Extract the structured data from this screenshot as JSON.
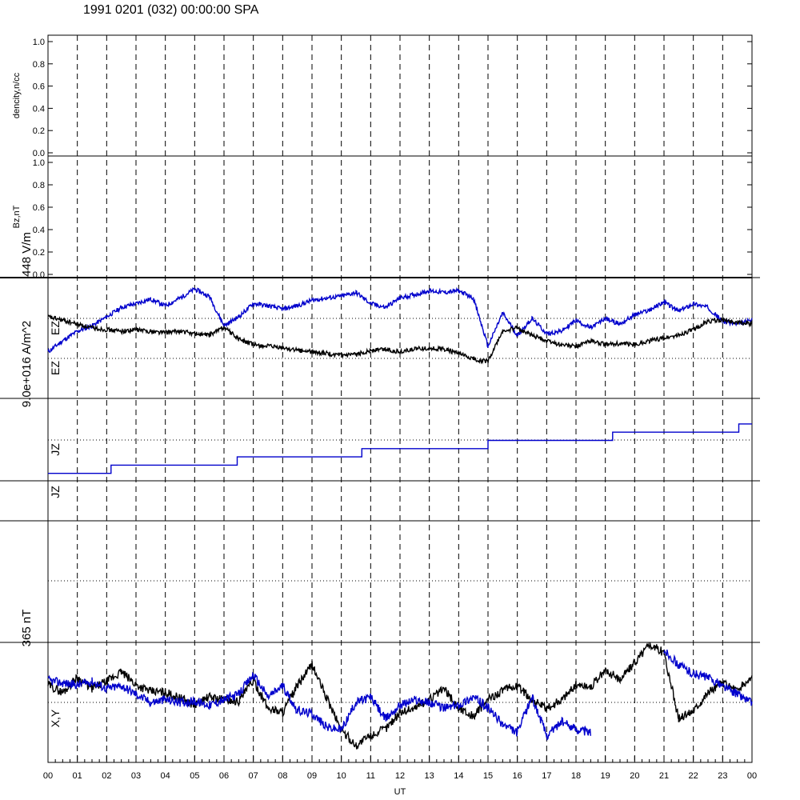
{
  "title": "1991 0201 (032) 00:00:00 SPA",
  "chart_data": [
    {
      "type": "line",
      "panel": "density",
      "ylabel": "dencity,n/cc",
      "ylim": [
        0,
        1
      ],
      "y_ticks": [
        "0.0",
        "0.2",
        "0.4",
        "0.6",
        "0.8",
        "1.0"
      ],
      "series": []
    },
    {
      "type": "line",
      "panel": "bz",
      "ylabel": "Bz,nT",
      "ylim": [
        0,
        1
      ],
      "y_ticks": [
        "0.0",
        "0.2",
        "0.4",
        "0.6",
        "0.8",
        "1.0"
      ],
      "series": []
    },
    {
      "type": "line",
      "panel": "ez",
      "scale_label": "448 V/m",
      "side_labels": [
        "EZ",
        "EZ"
      ],
      "ylim": [
        -1,
        1
      ],
      "x": [
        0,
        0.5,
        1,
        1.5,
        2,
        2.5,
        3,
        3.5,
        4,
        4.5,
        5,
        5.5,
        6,
        6.5,
        7,
        7.5,
        8,
        8.5,
        9,
        9.5,
        10,
        10.5,
        11,
        11.5,
        12,
        12.5,
        13,
        13.5,
        14,
        14.5,
        15,
        15.5,
        16,
        16.5,
        17,
        17.5,
        18,
        18.5,
        19,
        19.5,
        20,
        20.5,
        21,
        21.5,
        22,
        22.5,
        23,
        23.5,
        24
      ],
      "series": [
        {
          "color": "#0000cc",
          "values": [
            -0.25,
            -0.05,
            0.12,
            0.22,
            0.38,
            0.55,
            0.62,
            0.7,
            0.58,
            0.72,
            0.88,
            0.75,
            0.22,
            0.38,
            0.62,
            0.58,
            0.52,
            0.58,
            0.68,
            0.72,
            0.75,
            0.82,
            0.62,
            0.55,
            0.72,
            0.78,
            0.85,
            0.82,
            0.85,
            0.72,
            -0.15,
            0.45,
            0.05,
            0.35,
            0.08,
            0.12,
            0.32,
            0.18,
            0.35,
            0.25,
            0.42,
            0.5,
            0.65,
            0.48,
            0.62,
            0.55,
            0.3,
            0.25,
            0.32
          ]
        },
        {
          "color": "#000000",
          "values": [
            0.38,
            0.32,
            0.25,
            0.18,
            0.15,
            0.12,
            0.15,
            0.12,
            0.1,
            0.12,
            0.08,
            0.05,
            0.2,
            -0.02,
            -0.12,
            -0.15,
            -0.18,
            -0.22,
            -0.25,
            -0.28,
            -0.32,
            -0.3,
            -0.22,
            -0.2,
            -0.25,
            -0.2,
            -0.18,
            -0.2,
            -0.28,
            -0.38,
            -0.42,
            0.12,
            0.18,
            0.05,
            -0.05,
            -0.12,
            -0.15,
            -0.05,
            -0.12,
            -0.1,
            -0.12,
            -0.05,
            0.0,
            0.05,
            0.15,
            0.3,
            0.32,
            0.28,
            0.25
          ]
        }
      ]
    },
    {
      "type": "line",
      "panel": "jz",
      "scale_label": "9.0e+016 A/m^2",
      "side_labels": [
        "JZ",
        "JZ"
      ],
      "ylim": [
        -1,
        1
      ],
      "step_x": [
        0,
        2.15,
        6.45,
        10.7,
        15.0,
        19.25,
        23.55,
        24
      ],
      "step_y": [
        -0.82,
        -0.62,
        -0.42,
        -0.22,
        -0.02,
        0.18,
        0.38,
        0.38
      ],
      "step_color": "#0000cc"
    },
    {
      "type": "line",
      "panel": "xy",
      "scale_label": "365 nT",
      "side_label": "X,Y",
      "ylim": [
        -1,
        1
      ],
      "x": [
        0,
        0.5,
        1,
        1.5,
        2,
        2.5,
        3,
        3.5,
        4,
        4.5,
        5,
        5.5,
        6,
        6.5,
        7,
        7.5,
        8,
        8.5,
        9,
        9.5,
        10,
        10.5,
        11,
        11.5,
        12,
        12.5,
        13,
        13.5,
        14,
        14.5,
        15,
        15.5,
        16,
        16.5,
        17,
        17.5,
        18,
        18.5,
        19,
        19.5,
        20,
        20.5,
        21,
        21.5,
        22,
        22.5,
        23,
        23.5,
        24
      ],
      "series": [
        {
          "color": "#000000",
          "values": [
            0.32,
            0.18,
            0.45,
            0.25,
            0.38,
            0.55,
            0.32,
            0.2,
            0.18,
            0.08,
            -0.05,
            0.1,
            0.05,
            0.02,
            0.4,
            -0.1,
            -0.18,
            0.3,
            0.68,
            0.08,
            -0.5,
            -0.78,
            -0.6,
            -0.48,
            -0.18,
            -0.1,
            0.05,
            0.25,
            -0.1,
            -0.25,
            0.05,
            0.22,
            0.3,
            0.05,
            -0.12,
            0.05,
            0.32,
            0.28,
            0.58,
            0.42,
            0.72,
            1.05,
            0.9,
            -0.3,
            -0.15,
            0.18,
            0.35,
            0.22,
            0.45
          ]
        },
        {
          "color": "#0000cc",
          "values": [
            0.4,
            0.35,
            0.32,
            0.38,
            0.25,
            0.3,
            0.15,
            0.0,
            0.05,
            0.0,
            0.02,
            -0.05,
            0.05,
            0.15,
            0.5,
            0.1,
            0.3,
            -0.15,
            -0.2,
            -0.45,
            -0.5,
            0.0,
            0.1,
            -0.3,
            -0.05,
            0.05,
            0.0,
            -0.1,
            -0.05,
            0.1,
            -0.1,
            -0.4,
            -0.55,
            0.1,
            -0.6,
            -0.35,
            -0.48,
            -0.55,
            null,
            null,
            null,
            null,
            0.95,
            0.68,
            0.52,
            0.45,
            0.3,
            0.15,
            0.0
          ]
        }
      ]
    }
  ],
  "x_axis": {
    "label": "UT",
    "tick_labels": [
      "00",
      "01",
      "02",
      "03",
      "04",
      "05",
      "06",
      "07",
      "08",
      "09",
      "10",
      "11",
      "12",
      "13",
      "14",
      "15",
      "16",
      "17",
      "18",
      "19",
      "20",
      "21",
      "22",
      "23",
      "00"
    ]
  }
}
